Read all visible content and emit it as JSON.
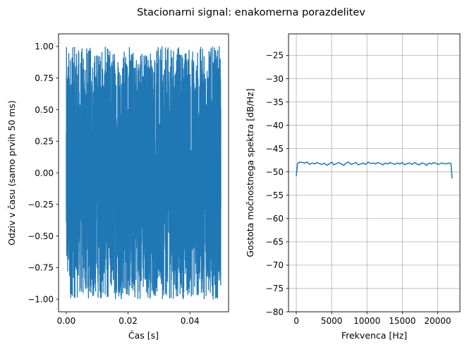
{
  "figure": {
    "title": "Stacionarni signal: enakomerna porazdelitev"
  },
  "chart_data": [
    {
      "type": "line",
      "title": "",
      "xlabel": "Čas [s]",
      "ylabel": "Odziv v času (samo prvih 50 ms)",
      "xlim": [
        -0.0025,
        0.0525
      ],
      "ylim": [
        -1.1,
        1.1
      ],
      "xticks": [
        {
          "value": 0.0,
          "label": "0.00"
        },
        {
          "value": 0.02,
          "label": "0.02"
        },
        {
          "value": 0.04,
          "label": "0.04"
        }
      ],
      "yticks": [
        {
          "value": 1.0,
          "label": "1.00"
        },
        {
          "value": 0.75,
          "label": "0.75"
        },
        {
          "value": 0.5,
          "label": "0.50"
        },
        {
          "value": 0.25,
          "label": "0.25"
        },
        {
          "value": 0.0,
          "label": "0.00"
        },
        {
          "value": -0.25,
          "label": "−0.25"
        },
        {
          "value": -0.5,
          "label": "−0.50"
        },
        {
          "value": -0.75,
          "label": "−0.75"
        },
        {
          "value": -1.0,
          "label": "−1.00"
        }
      ],
      "grid": false,
      "series": [
        {
          "color": "#1f77b4",
          "description": "uniform white noise in [-1, 1], dense samples filling band",
          "x_range": [
            0.0,
            0.05
          ],
          "y_range": [
            -1.0,
            1.0
          ],
          "approx_samples": 2200
        }
      ]
    },
    {
      "type": "line",
      "title": "",
      "xlabel": "Frekvenca [Hz]",
      "ylabel": "Gostota močnostnega spektra [dB/Hz]",
      "xlim": [
        -1100,
        23150
      ],
      "ylim": [
        -80,
        -20.4
      ],
      "xticks": [
        {
          "value": 0,
          "label": "0"
        },
        {
          "value": 5000,
          "label": "5000"
        },
        {
          "value": 10000,
          "label": "10000"
        },
        {
          "value": 15000,
          "label": "15000"
        },
        {
          "value": 20000,
          "label": "20000"
        }
      ],
      "yticks": [
        {
          "value": -25,
          "label": "−25"
        },
        {
          "value": -30,
          "label": "−30"
        },
        {
          "value": -35,
          "label": "−35"
        },
        {
          "value": -40,
          "label": "−40"
        },
        {
          "value": -45,
          "label": "−45"
        },
        {
          "value": -50,
          "label": "−50"
        },
        {
          "value": -55,
          "label": "−55"
        },
        {
          "value": -60,
          "label": "−60"
        },
        {
          "value": -65,
          "label": "−65"
        },
        {
          "value": -70,
          "label": "−70"
        },
        {
          "value": -75,
          "label": "−75"
        },
        {
          "value": -80,
          "label": "−80"
        }
      ],
      "grid": true,
      "series": [
        {
          "color": "#1f77b4",
          "x": [
            0,
            172,
            517,
            862,
            1206,
            1551,
            1895,
            2240,
            2584,
            2929,
            3273,
            3618,
            3962,
            4307,
            4651,
            4996,
            5340,
            5685,
            6029,
            6374,
            6718,
            7063,
            7407,
            7752,
            8096,
            8441,
            8785,
            9130,
            9474,
            9819,
            10163,
            10508,
            10852,
            11197,
            11541,
            11886,
            12230,
            12575,
            12919,
            13264,
            13608,
            13953,
            14297,
            14642,
            14986,
            15331,
            15675,
            16020,
            16364,
            16709,
            17053,
            17398,
            17742,
            18087,
            18431,
            18776,
            19120,
            19465,
            19809,
            20154,
            20498,
            20843,
            21187,
            21532,
            21876,
            22050
          ],
          "y": [
            -50.9,
            -48.2,
            -47.9,
            -48.0,
            -48.1,
            -47.9,
            -48.4,
            -48.1,
            -48.3,
            -48.0,
            -48.2,
            -48.4,
            -48.1,
            -48.6,
            -48.3,
            -47.9,
            -48.5,
            -48.2,
            -48.0,
            -48.3,
            -48.6,
            -48.1,
            -47.9,
            -48.4,
            -48.2,
            -48.0,
            -48.5,
            -48.3,
            -48.1,
            -48.4,
            -47.9,
            -48.2,
            -48.1,
            -48.3,
            -48.0,
            -48.2,
            -48.5,
            -48.1,
            -48.3,
            -48.0,
            -48.2,
            -48.4,
            -48.1,
            -48.3,
            -48.0,
            -48.5,
            -48.2,
            -48.1,
            -48.4,
            -48.0,
            -48.3,
            -48.5,
            -48.1,
            -48.2,
            -48.6,
            -48.1,
            -48.3,
            -48.0,
            -48.2,
            -48.4,
            -48.1,
            -48.2,
            -48.3,
            -48.1,
            -48.2,
            -51.4
          ]
        }
      ]
    }
  ]
}
